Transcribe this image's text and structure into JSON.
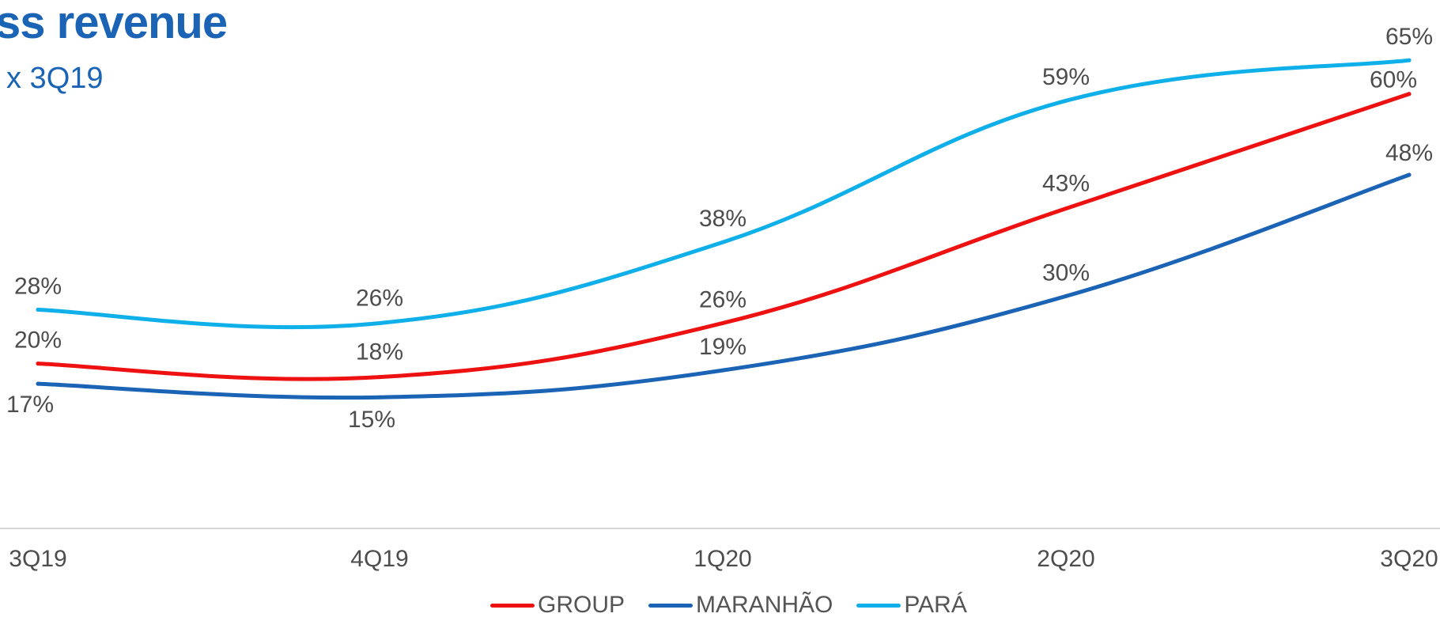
{
  "title": "ss revenue",
  "subtitle": "x 3Q19",
  "chart_data": {
    "type": "line",
    "categories": [
      "3Q19",
      "4Q19",
      "1Q20",
      "2Q20",
      "3Q20"
    ],
    "series": [
      {
        "name": "GROUP",
        "color": "#ee1111",
        "values": [
          20,
          18,
          26,
          43,
          60
        ]
      },
      {
        "name": "MARANHÃO",
        "color": "#1a63b5",
        "values": [
          17,
          15,
          19,
          30,
          48
        ]
      },
      {
        "name": "PARÁ",
        "color": "#0fb0ea",
        "values": [
          28,
          26,
          38,
          59,
          65
        ]
      }
    ],
    "data_labels": [
      [
        "20%",
        "18%",
        "26%",
        "43%",
        "60%"
      ],
      [
        "17%",
        "15%",
        "19%",
        "30%",
        "48%"
      ],
      [
        "28%",
        "26%",
        "38%",
        "59%",
        "65%"
      ]
    ],
    "legend_position": "bottom",
    "grid": false
  }
}
